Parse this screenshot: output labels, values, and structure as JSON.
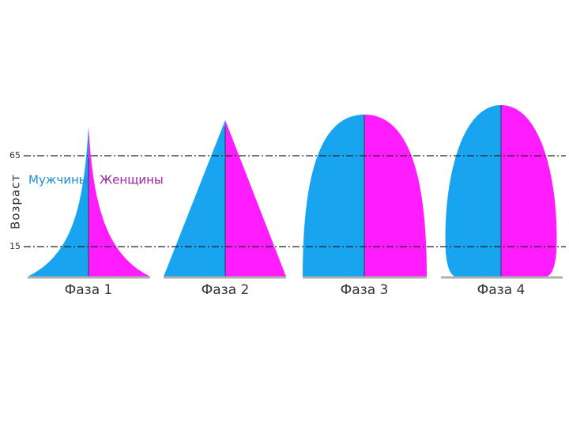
{
  "axis": {
    "label": "Возраст",
    "marks": [
      "65",
      "15"
    ]
  },
  "legend": {
    "male": "Мужчины",
    "female": "Женщины"
  },
  "phases": [
    {
      "label": "Фаза 1"
    },
    {
      "label": "Фаза 2"
    },
    {
      "label": "Фаза 3"
    },
    {
      "label": "Фаза 4"
    }
  ]
}
